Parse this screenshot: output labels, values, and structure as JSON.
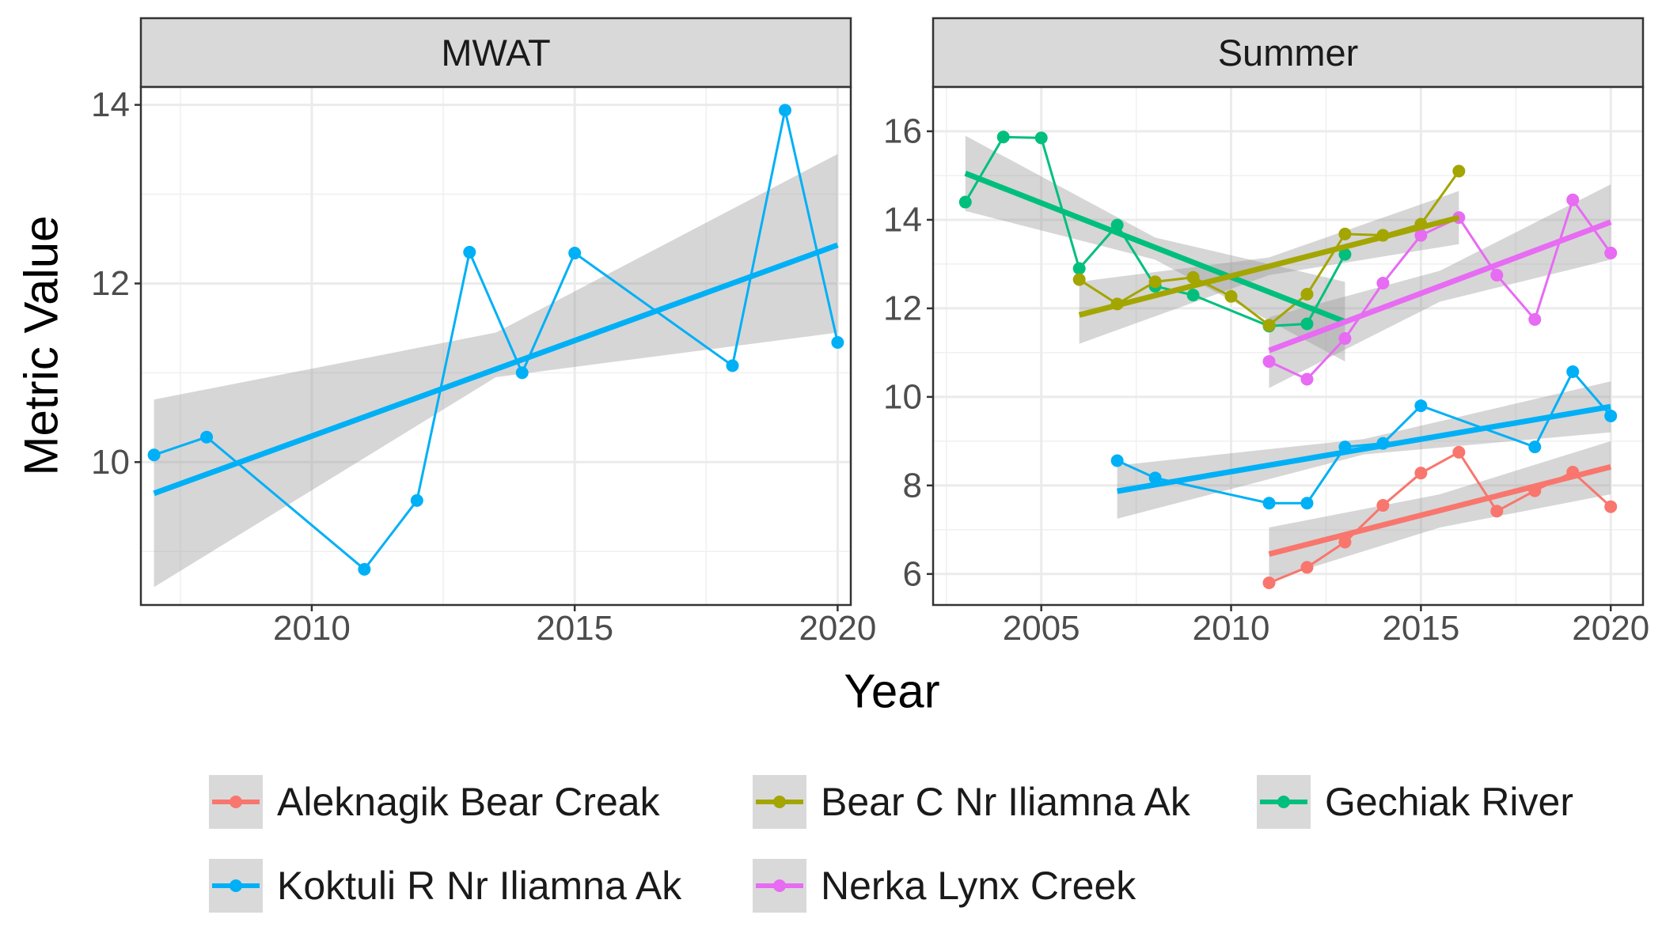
{
  "chart_data": {
    "type": "line",
    "xlabel": "Year",
    "ylabel": "Metric Value",
    "grid": true,
    "legend_position": "bottom",
    "series_colors": {
      "Aleknagik Bear Creak": "#F8766D",
      "Bear C Nr Iliamna Ak": "#A3A500",
      "Gechiak River": "#00BF7D",
      "Koktuli R Nr Iliamna Ak": "#00B0F6",
      "Nerka Lynx Creek": "#E76BF3"
    },
    "legend": [
      "Aleknagik Bear Creak",
      "Bear C Nr Iliamna Ak",
      "Gechiak River",
      "Koktuli R Nr Iliamna Ak",
      "Nerka Lynx Creek"
    ],
    "panels": [
      {
        "title": "MWAT",
        "xlim": [
          2006.75,
          2020.25
        ],
        "ylim": [
          8.4,
          14.2
        ],
        "xticks": [
          2010,
          2015,
          2020
        ],
        "yticks": [
          10,
          12,
          14
        ],
        "series": [
          {
            "name": "Koktuli R Nr Iliamna Ak",
            "points": [
              [
                2007,
                10.08
              ],
              [
                2008,
                10.28
              ],
              [
                2011,
                8.8
              ],
              [
                2012,
                9.57
              ],
              [
                2013,
                12.35
              ],
              [
                2014,
                11.0
              ],
              [
                2015,
                12.34
              ],
              [
                2018,
                11.08
              ],
              [
                2019,
                13.94
              ],
              [
                2020,
                11.34
              ]
            ],
            "fit": [
              [
                2007,
                9.65
              ],
              [
                2020,
                12.43
              ]
            ],
            "band_upper": [
              [
                2007,
                10.7
              ],
              [
                2013.5,
                11.45
              ],
              [
                2020,
                13.45
              ]
            ],
            "band_lower": [
              [
                2007,
                8.6
              ],
              [
                2013.5,
                10.95
              ],
              [
                2020,
                11.45
              ]
            ]
          }
        ]
      },
      {
        "title": "Summer",
        "xlim": [
          2002.15,
          2020.85
        ],
        "ylim": [
          5.3,
          17.0
        ],
        "xticks": [
          2005,
          2010,
          2015,
          2020
        ],
        "yticks": [
          6,
          8,
          10,
          12,
          14,
          16
        ],
        "series": [
          {
            "name": "Gechiak River",
            "points": [
              [
                2003,
                14.4
              ],
              [
                2004,
                15.87
              ],
              [
                2005,
                15.85
              ],
              [
                2006,
                12.9
              ],
              [
                2007,
                13.88
              ],
              [
                2008,
                12.5
              ],
              [
                2009,
                12.3
              ],
              [
                2011,
                11.6
              ],
              [
                2012,
                11.65
              ],
              [
                2013,
                13.22
              ]
            ],
            "fit": [
              [
                2003,
                15.05
              ],
              [
                2013,
                11.7
              ]
            ],
            "band_upper": [
              [
                2003,
                15.9
              ],
              [
                2008,
                13.6
              ],
              [
                2013,
                12.6
              ]
            ],
            "band_lower": [
              [
                2003,
                14.2
              ],
              [
                2008,
                13.1
              ],
              [
                2013,
                10.8
              ]
            ]
          },
          {
            "name": "Bear C Nr Iliamna Ak",
            "points": [
              [
                2006,
                12.65
              ],
              [
                2007,
                12.1
              ],
              [
                2008,
                12.6
              ],
              [
                2009,
                12.7
              ],
              [
                2010,
                12.27
              ],
              [
                2011,
                11.62
              ],
              [
                2012,
                12.32
              ],
              [
                2013,
                13.68
              ],
              [
                2014,
                13.65
              ],
              [
                2015,
                13.9
              ],
              [
                2016,
                15.1
              ]
            ],
            "fit": [
              [
                2006,
                11.85
              ],
              [
                2016,
                14.05
              ]
            ],
            "band_upper": [
              [
                2006,
                12.6
              ],
              [
                2011,
                13.15
              ],
              [
                2016,
                14.65
              ]
            ],
            "band_lower": [
              [
                2006,
                11.2
              ],
              [
                2011,
                12.75
              ],
              [
                2016,
                13.45
              ]
            ]
          },
          {
            "name": "Nerka Lynx Creek",
            "points": [
              [
                2011,
                10.8
              ],
              [
                2012,
                10.4
              ],
              [
                2013,
                11.32
              ],
              [
                2014,
                12.57
              ],
              [
                2015,
                13.65
              ],
              [
                2016,
                14.05
              ],
              [
                2017,
                12.75
              ],
              [
                2018,
                11.75
              ],
              [
                2019,
                14.45
              ],
              [
                2020,
                13.25
              ]
            ],
            "fit": [
              [
                2011,
                11.05
              ],
              [
                2020,
                13.95
              ]
            ],
            "band_upper": [
              [
                2011,
                11.8
              ],
              [
                2015.5,
                12.85
              ],
              [
                2020,
                14.8
              ]
            ],
            "band_lower": [
              [
                2011,
                10.2
              ],
              [
                2015.5,
                12.15
              ],
              [
                2020,
                13.1
              ]
            ]
          },
          {
            "name": "Koktuli R Nr Iliamna Ak",
            "points": [
              [
                2007,
                8.56
              ],
              [
                2008,
                8.17
              ],
              [
                2011,
                7.6
              ],
              [
                2012,
                7.6
              ],
              [
                2013,
                8.87
              ],
              [
                2014,
                8.95
              ],
              [
                2015,
                9.8
              ],
              [
                2018,
                8.87
              ],
              [
                2019,
                10.57
              ],
              [
                2020,
                9.57
              ]
            ],
            "fit": [
              [
                2007,
                7.87
              ],
              [
                2020,
                9.78
              ]
            ],
            "band_upper": [
              [
                2007,
                8.45
              ],
              [
                2013.5,
                9.05
              ],
              [
                2020,
                10.35
              ]
            ],
            "band_lower": [
              [
                2007,
                7.25
              ],
              [
                2013.5,
                8.7
              ],
              [
                2020,
                9.2
              ]
            ]
          },
          {
            "name": "Aleknagik Bear Creak",
            "points": [
              [
                2011,
                5.8
              ],
              [
                2012,
                6.15
              ],
              [
                2013,
                6.72
              ],
              [
                2014,
                7.55
              ],
              [
                2015,
                8.28
              ],
              [
                2016,
                8.75
              ],
              [
                2017,
                7.42
              ],
              [
                2018,
                7.88
              ],
              [
                2019,
                8.3
              ],
              [
                2020,
                7.52
              ]
            ],
            "fit": [
              [
                2011,
                6.45
              ],
              [
                2020,
                8.42
              ]
            ],
            "band_upper": [
              [
                2011,
                7.05
              ],
              [
                2015.5,
                7.8
              ],
              [
                2020,
                9.0
              ]
            ],
            "band_lower": [
              [
                2011,
                5.85
              ],
              [
                2015.5,
                7.05
              ],
              [
                2020,
                7.8
              ]
            ]
          }
        ]
      }
    ]
  }
}
